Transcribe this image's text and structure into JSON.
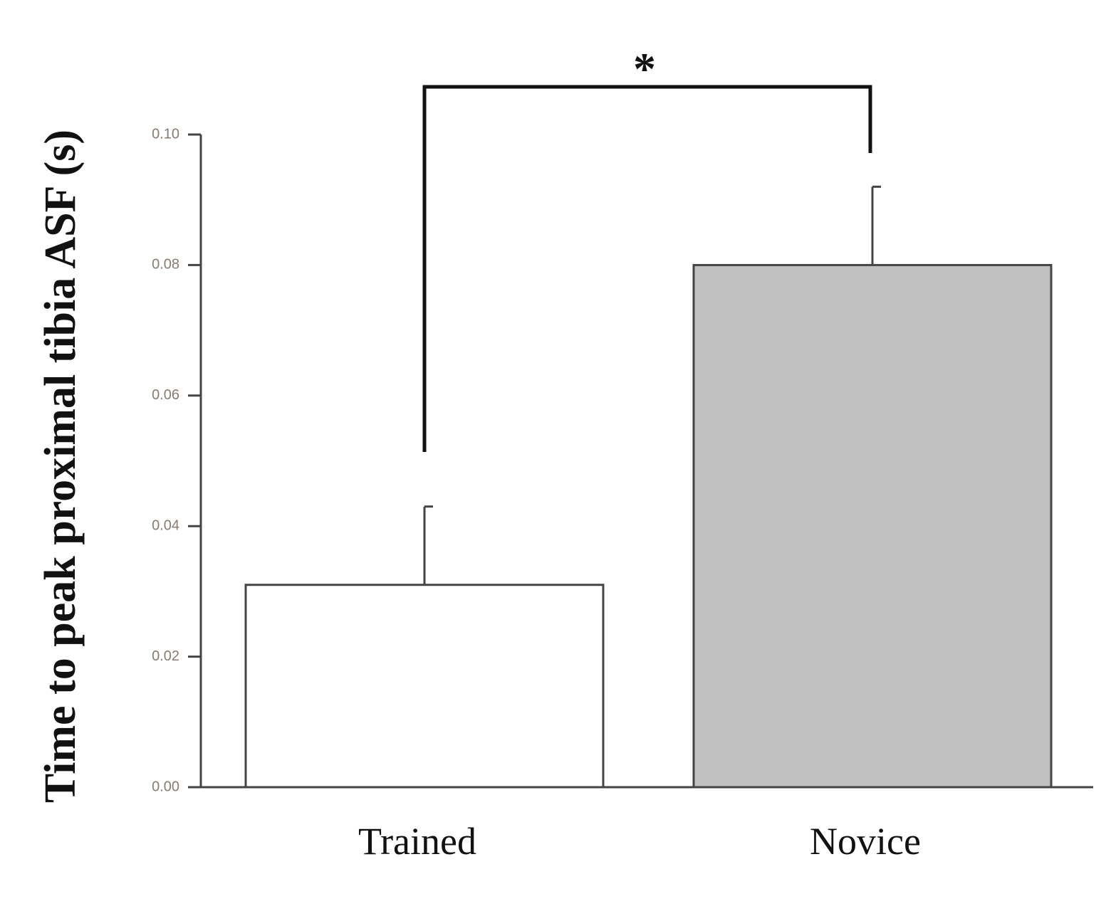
{
  "chart_data": {
    "type": "bar",
    "y_label": "Time to peak proximal tibia ASF (s)",
    "categories": [
      "Trained",
      "Novice"
    ],
    "values": [
      0.031,
      0.08
    ],
    "errors": [
      0.012,
      0.012
    ],
    "colors": [
      "#ffffff",
      "#c0c0c0"
    ],
    "annotation": "*",
    "ylim": [
      0,
      0.1
    ],
    "yticks": [
      {
        "value": 0,
        "label": "0.00"
      },
      {
        "value": 0.02,
        "label": "0.02"
      },
      {
        "value": 0.04,
        "label": "0.04"
      },
      {
        "value": 0.06,
        "label": "0.06"
      },
      {
        "value": 0.08,
        "label": "0.08"
      },
      {
        "value": 0.1,
        "label": "0.10"
      }
    ],
    "grid": false
  }
}
